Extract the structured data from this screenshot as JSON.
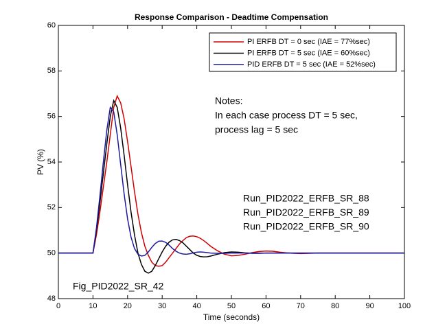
{
  "chart_data": {
    "type": "line",
    "title": "Response Comparison - Deadtime Compensation",
    "xlabel": "Time (seconds)",
    "ylabel": "PV (%)",
    "x": [
      0,
      10,
      11,
      12,
      13,
      14,
      15,
      16,
      17,
      18,
      19,
      20,
      21,
      22,
      23,
      24,
      25,
      26,
      27,
      28,
      29,
      30,
      31,
      32,
      33,
      34,
      35,
      36,
      37,
      38,
      39,
      40,
      41,
      42,
      43,
      44,
      46,
      48,
      50,
      52,
      54,
      56,
      58,
      60,
      62,
      64,
      66,
      68,
      70,
      75,
      80,
      100
    ],
    "series": [
      {
        "name": "PI ERFB DT = 0 sec (IAE = 77%sec)",
        "color": "#d00000",
        "values": [
          50,
          50,
          50.8,
          51.8,
          52.9,
          54.0,
          55.2,
          56.4,
          56.9,
          56.6,
          55.9,
          54.9,
          53.8,
          52.7,
          51.7,
          50.9,
          50.3,
          49.9,
          49.6,
          49.45,
          49.42,
          49.45,
          49.6,
          49.8,
          50.0,
          50.2,
          50.4,
          50.55,
          50.68,
          50.74,
          50.75,
          50.72,
          50.65,
          50.55,
          50.43,
          50.3,
          50.1,
          49.95,
          49.88,
          49.9,
          49.95,
          50.02,
          50.07,
          50.09,
          50.08,
          50.04,
          50.01,
          49.99,
          49.98,
          50,
          50,
          50
        ]
      },
      {
        "name": "PI ERFB DT = 5 sec (IAE = 60%sec)",
        "color": "#000000",
        "values": [
          50,
          50,
          51.0,
          52.2,
          53.5,
          54.8,
          56.0,
          56.7,
          56.4,
          55.5,
          54.3,
          53.0,
          51.8,
          50.8,
          50.0,
          49.5,
          49.2,
          49.12,
          49.2,
          49.45,
          49.75,
          50.05,
          50.3,
          50.48,
          50.58,
          50.6,
          50.55,
          50.45,
          50.3,
          50.15,
          50.0,
          49.9,
          49.85,
          49.83,
          49.84,
          49.87,
          49.95,
          50.02,
          50.05,
          50.04,
          50.01,
          49.99,
          49.99,
          50,
          50,
          50,
          50,
          50,
          50,
          50,
          50,
          50
        ]
      },
      {
        "name": "PID ERFB DT = 5 sec (IAE = 52%sec)",
        "color": "#1a1aa0",
        "values": [
          50,
          50,
          51.1,
          52.5,
          54.0,
          55.4,
          56.4,
          56.2,
          55.2,
          53.9,
          52.6,
          51.5,
          50.7,
          50.2,
          49.95,
          49.87,
          49.9,
          50.05,
          50.25,
          50.42,
          50.52,
          50.53,
          50.47,
          50.35,
          50.2,
          50.08,
          50.0,
          49.96,
          49.95,
          49.97,
          50.01,
          50.04,
          50.05,
          50.04,
          50.02,
          50.0,
          49.99,
          49.99,
          50,
          50,
          50,
          50,
          50,
          50,
          50,
          50,
          50,
          50,
          50,
          50,
          50,
          50
        ]
      }
    ],
    "xlim": [
      0,
      100
    ],
    "xticks": [
      0,
      10,
      20,
      30,
      40,
      50,
      60,
      70,
      80,
      90,
      100
    ],
    "ylim": [
      48,
      60
    ],
    "yticks": [
      48,
      50,
      52,
      54,
      56,
      58,
      60
    ],
    "grid": false,
    "legend": "upper right",
    "notes": [
      "Notes:",
      "In each case process DT = 5 sec,",
      "process lag = 5 sec"
    ],
    "runs": [
      "Run_PID2022_ERFB_SR_88",
      "Run_PID2022_ERFB_SR_89",
      "Run_PID2022_ERFB_SR_90"
    ],
    "figure_label": "Fig_PID2022_SR_42"
  }
}
